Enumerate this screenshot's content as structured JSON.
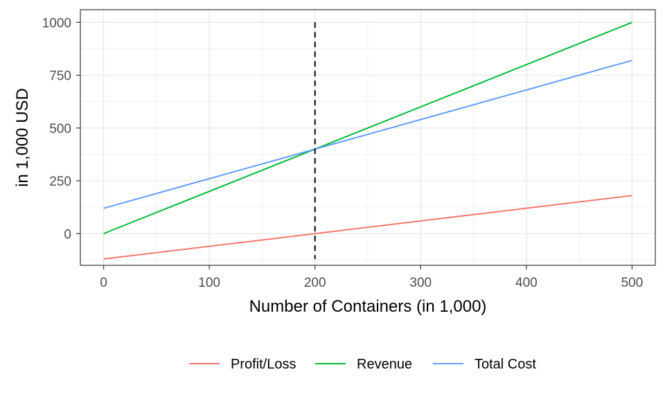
{
  "chart_data": {
    "type": "line",
    "title": "",
    "xlabel": "Number of Containers (in 1,000)",
    "ylabel": "in 1,000 USD",
    "xlim": [
      -22,
      522
    ],
    "ylim": [
      -150,
      1060
    ],
    "x_ticks": [
      0,
      100,
      200,
      300,
      400,
      500
    ],
    "x_tick_labels": [
      "0",
      "100",
      "200",
      "300",
      "400",
      "500"
    ],
    "x_minor_ticks": [
      50,
      150,
      250,
      350,
      450
    ],
    "y_ticks": [
      0,
      250,
      500,
      750,
      1000
    ],
    "y_tick_labels": [
      "0",
      "250",
      "500",
      "750",
      "1000"
    ],
    "y_minor_ticks": [
      -125,
      125,
      375,
      625,
      875
    ],
    "grid": true,
    "legend_position": "bottom",
    "series": [
      {
        "name": "Profit/Loss",
        "color": "#F8766D",
        "x": [
          0,
          500
        ],
        "y": [
          -120,
          180
        ]
      },
      {
        "name": "Revenue",
        "color": "#00BA38",
        "x": [
          0,
          500
        ],
        "y": [
          0,
          1000
        ]
      },
      {
        "name": "Total Cost",
        "color": "#619CFF",
        "x": [
          0,
          500
        ],
        "y": [
          120,
          820
        ]
      }
    ],
    "reference_line": {
      "orientation": "vertical",
      "x": 200,
      "y_range": [
        -120,
        1000
      ],
      "style": "dashed",
      "color": "#000000"
    }
  }
}
